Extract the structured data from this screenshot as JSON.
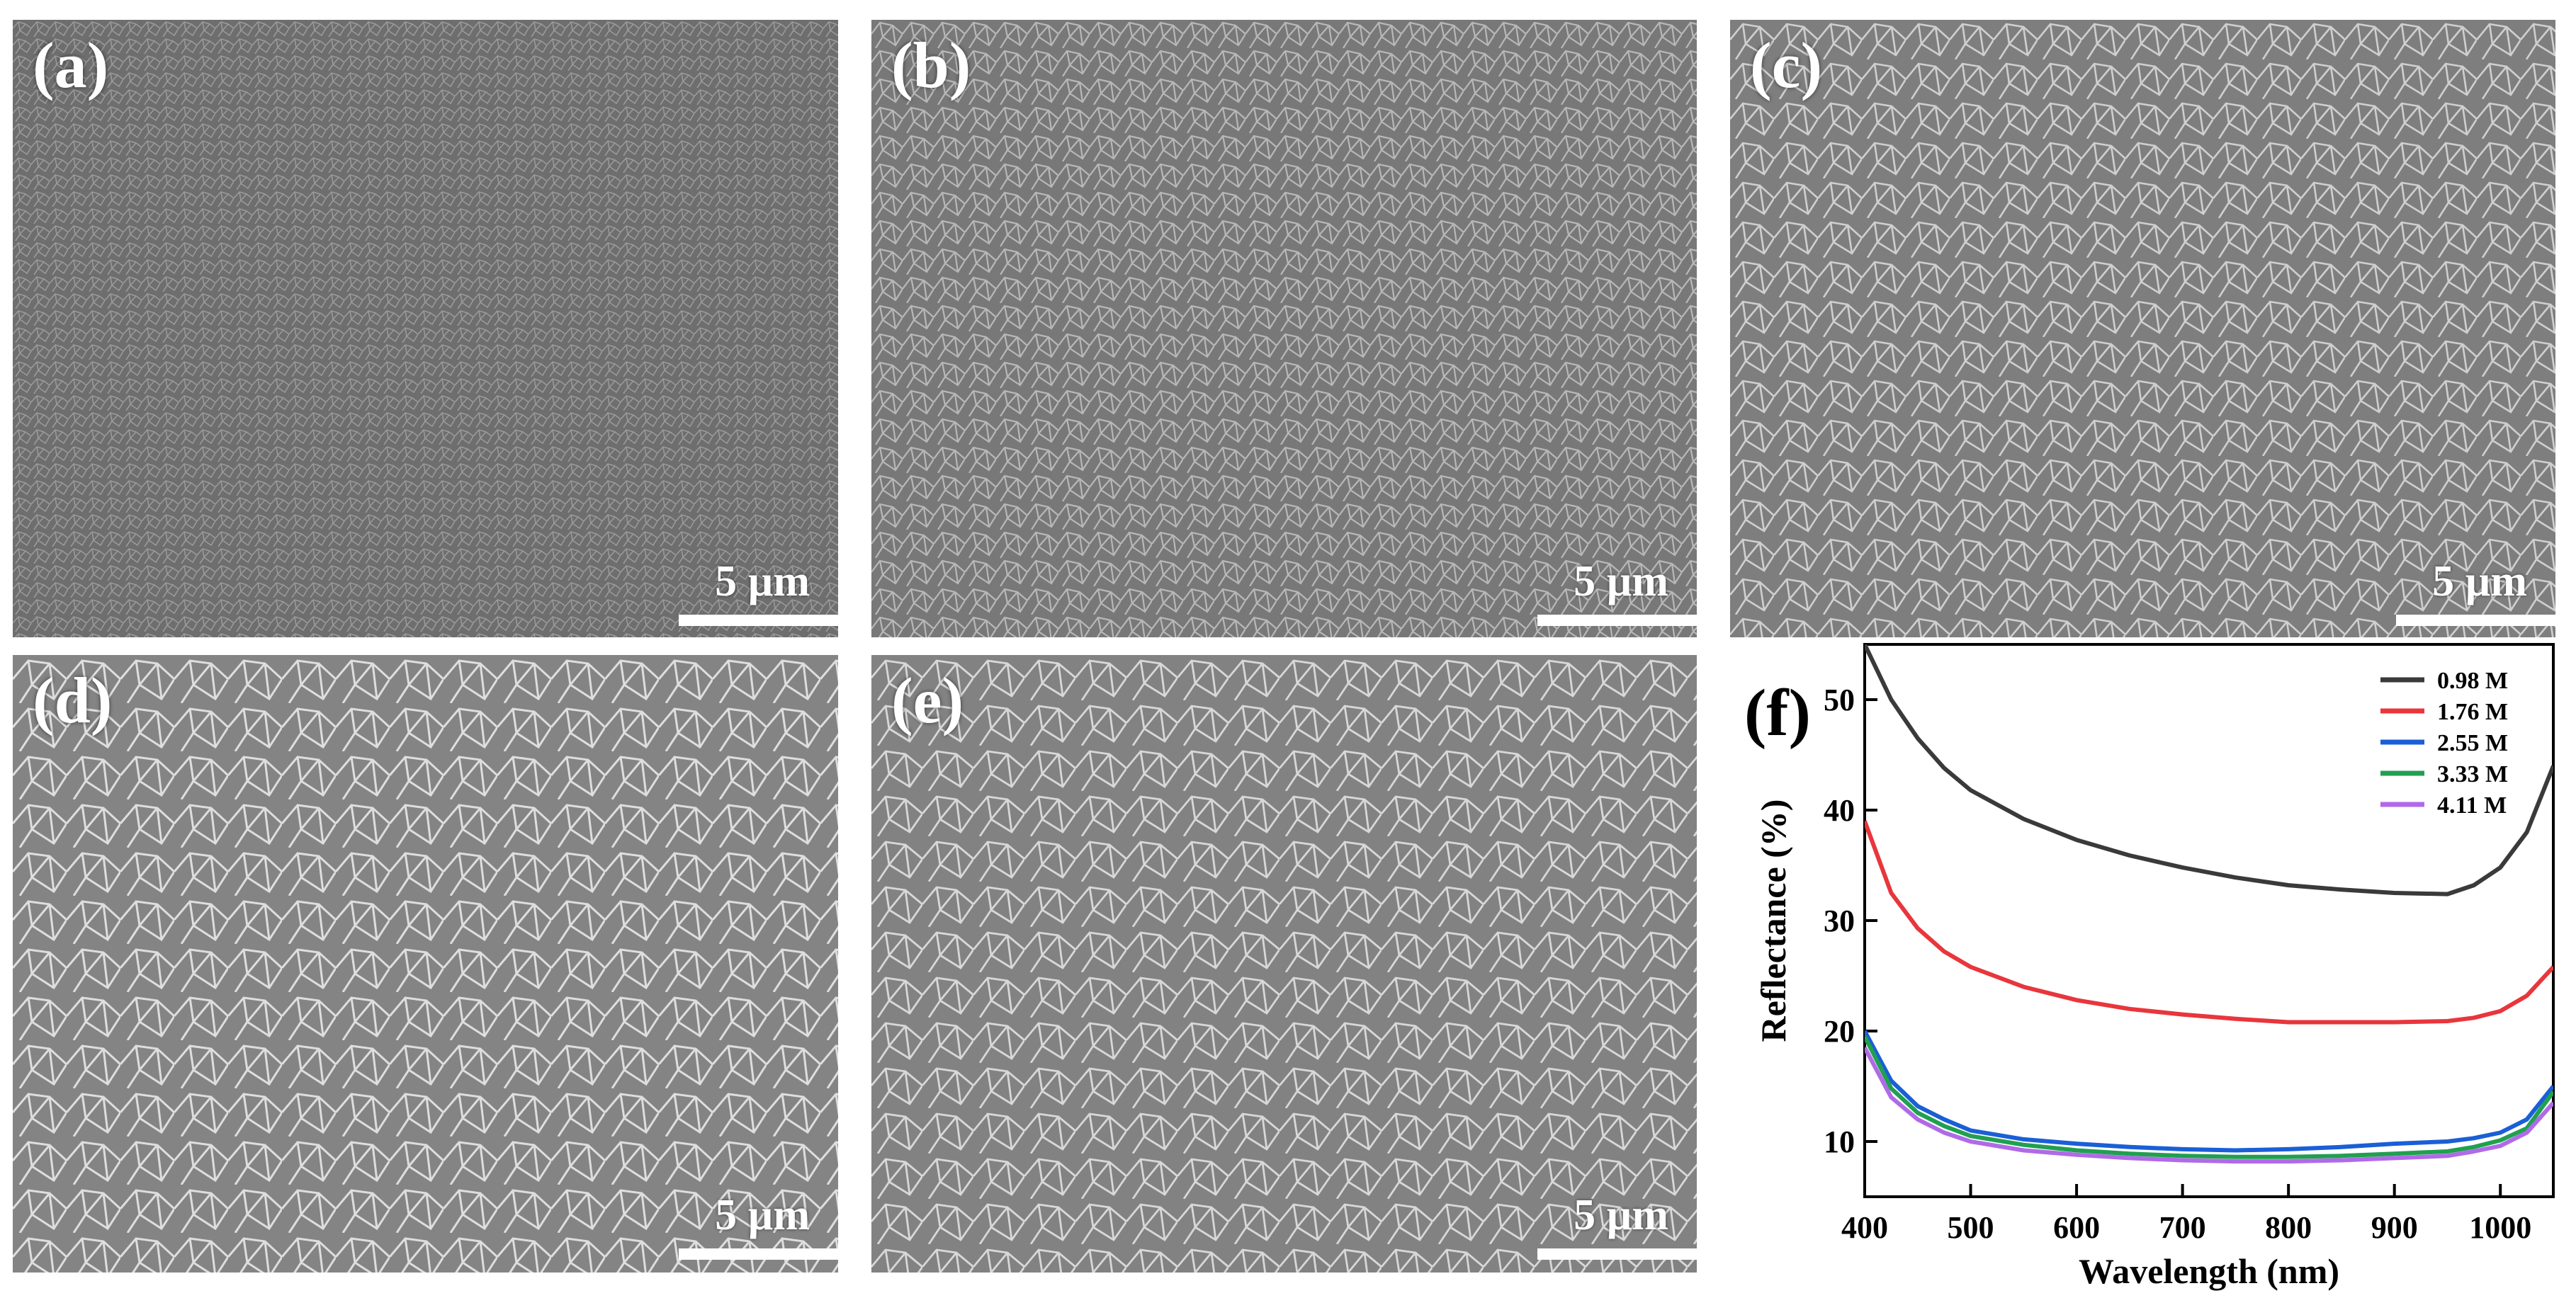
{
  "panels": [
    {
      "label": "(a)",
      "scale": "5 µm",
      "tone": "#707070",
      "grain": "fine"
    },
    {
      "label": "(b)",
      "scale": "5 µm",
      "tone": "#7a7a7a",
      "grain": "mixed"
    },
    {
      "label": "(c)",
      "scale": "5 µm",
      "tone": "#808080",
      "grain": "medium"
    },
    {
      "label": "(d)",
      "scale": "5 µm",
      "tone": "#858585",
      "grain": "large"
    },
    {
      "label": "(e)",
      "scale": "5 µm",
      "tone": "#828282",
      "grain": "large"
    }
  ],
  "figure_f": {
    "label": "(f)"
  },
  "chart_data": {
    "type": "line",
    "xlabel": "Wavelength (nm)",
    "ylabel": "Reflectance (%)",
    "xlim": [
      400,
      1050
    ],
    "ylim": [
      5,
      55
    ],
    "xticks": [
      400,
      500,
      600,
      700,
      800,
      900,
      1000
    ],
    "yticks": [
      10,
      20,
      30,
      40,
      50
    ],
    "grid": false,
    "legend_position": "top-right",
    "x": [
      400,
      425,
      450,
      475,
      500,
      550,
      600,
      650,
      700,
      750,
      800,
      850,
      900,
      950,
      975,
      1000,
      1025,
      1050
    ],
    "series": [
      {
        "name": "0.98 M",
        "color": "#3a3a3a",
        "values": [
          55,
          50,
          46.5,
          43.8,
          41.8,
          39.2,
          37.3,
          35.9,
          34.8,
          33.9,
          33.2,
          32.8,
          32.5,
          32.4,
          33.2,
          34.8,
          38.0,
          44.0
        ]
      },
      {
        "name": "1.76 M",
        "color": "#e8363c",
        "values": [
          39,
          32.5,
          29.3,
          27.2,
          25.8,
          24.0,
          22.8,
          22.0,
          21.5,
          21.1,
          20.8,
          20.8,
          20.8,
          20.9,
          21.2,
          21.8,
          23.2,
          25.8
        ]
      },
      {
        "name": "2.55 M",
        "color": "#1a5fd6",
        "values": [
          20,
          15.5,
          13.2,
          12.0,
          11.0,
          10.2,
          9.8,
          9.5,
          9.3,
          9.2,
          9.3,
          9.5,
          9.8,
          10.0,
          10.3,
          10.8,
          12.0,
          15.0
        ]
      },
      {
        "name": "3.33 M",
        "color": "#20a050",
        "values": [
          19.5,
          14.8,
          12.6,
          11.4,
          10.5,
          9.7,
          9.2,
          8.9,
          8.7,
          8.6,
          8.6,
          8.7,
          8.9,
          9.1,
          9.5,
          10.1,
          11.2,
          14.5
        ]
      },
      {
        "name": "4.11 M",
        "color": "#b06ae8",
        "values": [
          18.5,
          14.0,
          12.0,
          10.8,
          10.0,
          9.2,
          8.8,
          8.5,
          8.3,
          8.2,
          8.2,
          8.3,
          8.5,
          8.7,
          9.1,
          9.6,
          10.8,
          13.5
        ]
      }
    ]
  }
}
